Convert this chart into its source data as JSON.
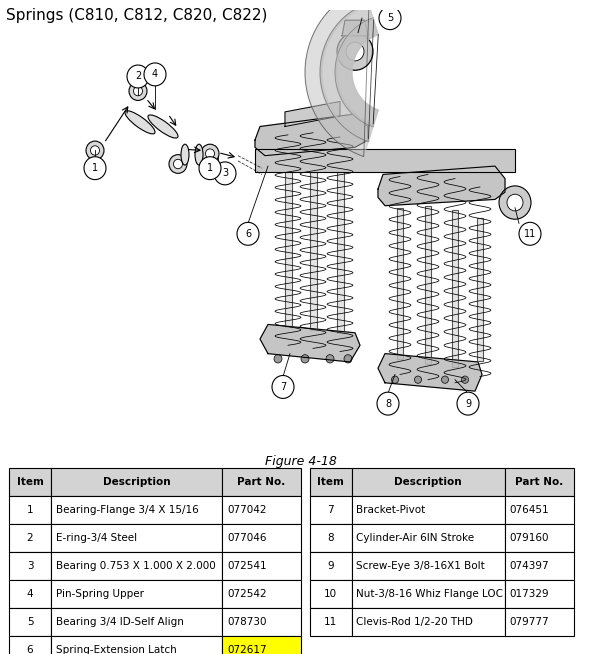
{
  "title": "Springs (C810, C812, C820, C822)",
  "figure_label": "Figure 4-18",
  "background_color": "#ffffff",
  "table_header_color": "#d3d3d3",
  "table_highlight_color": "#ffff00",
  "table_border_color": "#000000",
  "left_table": {
    "headers": [
      "Item",
      "Description",
      "Part No."
    ],
    "rows": [
      [
        "1",
        "Bearing-Flange 3/4 X 15/16",
        "077042",
        false
      ],
      [
        "2",
        "E-ring-3/4 Steel",
        "077046",
        false
      ],
      [
        "3",
        "Bearing 0.753 X 1.000 X 2.000",
        "072541",
        false
      ],
      [
        "4",
        "Pin-Spring Upper",
        "072542",
        false
      ],
      [
        "5",
        "Bearing 3/4 ID-Self Align",
        "078730",
        false
      ],
      [
        "6",
        "Spring-Extension Latch",
        "072617",
        true
      ]
    ]
  },
  "right_table": {
    "headers": [
      "Item",
      "Description",
      "Part No."
    ],
    "rows": [
      [
        "7",
        "Bracket-Pivot",
        "076451",
        false
      ],
      [
        "8",
        "Cylinder-Air 6IN Stroke",
        "079160",
        false
      ],
      [
        "9",
        "Screw-Eye 3/8-16X1 Bolt",
        "074397",
        false
      ],
      [
        "10",
        "Nut-3/8-16 Whiz Flange LOC",
        "017329",
        false
      ],
      [
        "11",
        "Clevis-Rod 1/2-20 THD",
        "079777",
        false
      ]
    ]
  },
  "title_fontsize": 11,
  "table_fontsize": 7.5,
  "figure_label_fontsize": 9
}
